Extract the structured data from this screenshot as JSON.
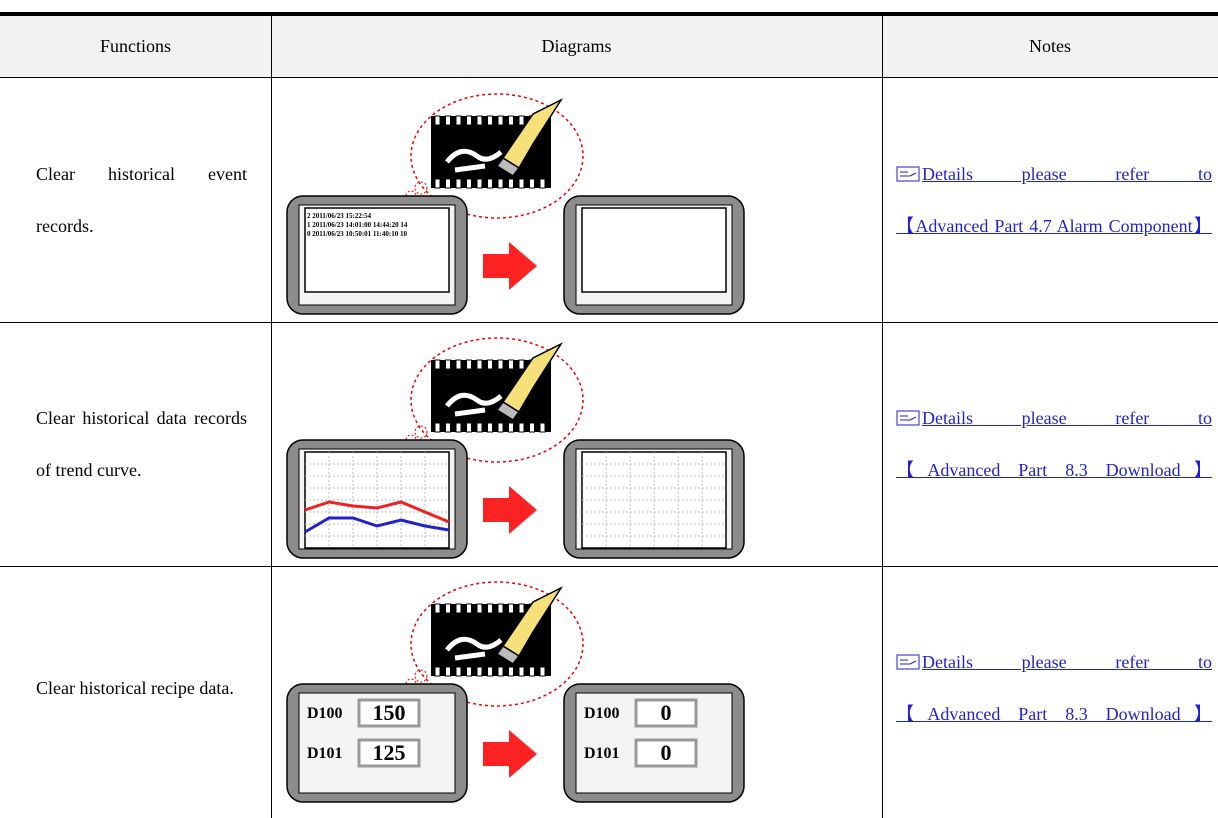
{
  "header": {
    "functions": "Functions",
    "diagrams": "Diagrams",
    "notes": "Notes"
  },
  "rows": [
    {
      "function": "Clear historical event records.",
      "diagram": {
        "lines": [
          "2 2011/06/23 15:22:54",
          "1 2011/06/23 14:01:00 14:44:20 14",
          "0 2011/06/23 10:50:01 11:40:10 10"
        ]
      },
      "note": {
        "lead": "Details please refer to",
        "link": "【Advanced Part 4.7 Alarm Component】"
      }
    },
    {
      "function": "Clear historical data records of trend curve.",
      "diagram": {},
      "note": {
        "lead": "Details please refer to",
        "link": "【Advanced Part 8.3 Download】"
      }
    },
    {
      "function": "Clear historical recipe data.",
      "diagram": {
        "before": [
          {
            "label": "D100",
            "value": 150
          },
          {
            "label": "D101",
            "value": 125
          }
        ],
        "after": [
          {
            "label": "D100",
            "value": 0
          },
          {
            "label": "D101",
            "value": 0
          }
        ]
      },
      "note": {
        "lead": "Details please refer to",
        "link": "【Advanced Part 8.3 Download】"
      }
    }
  ]
}
